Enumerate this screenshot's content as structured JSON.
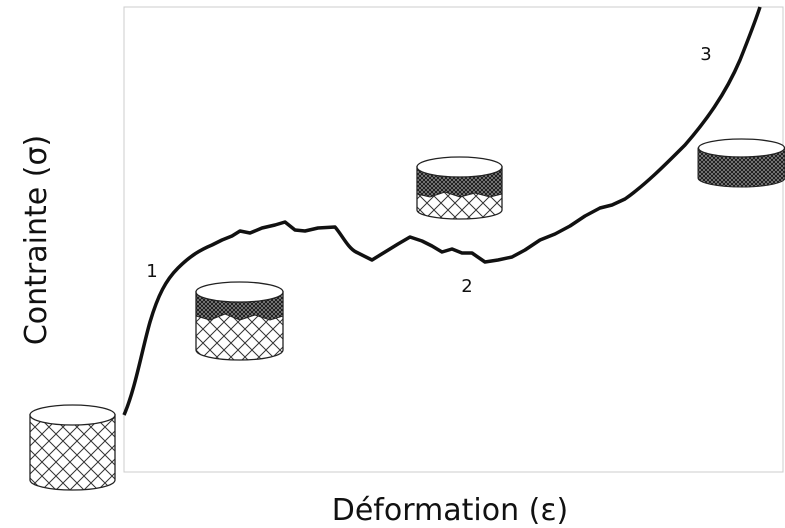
{
  "axes": {
    "x_label": "Déformation (ε)",
    "y_label": "Contrainte (σ)"
  },
  "regions": [
    {
      "label": "1"
    },
    {
      "label": "2"
    },
    {
      "label": "3"
    }
  ]
}
